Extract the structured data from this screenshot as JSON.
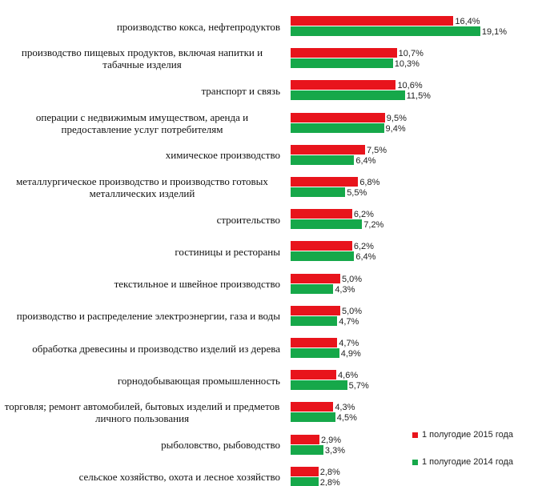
{
  "chart_data": {
    "type": "barh",
    "categories": [
      "производство кокса, нефтепродуктов",
      "производство пищевых продуктов, включая напитки и табачные изделия",
      "транспорт и связь",
      "операции с недвижимым имуществом, аренда и предоставление услуг потребителям",
      "химическое производство",
      "металлургическое производство и производство готовых металлических изделий",
      "строительство",
      "гостиницы и рестораны",
      "текстильное и швейное производство",
      "производство и распределение электроэнергии, газа и воды",
      "обработка древесины и производство изделий из дерева",
      "горнодобывающая промышленность",
      "торговля; ремонт автомобилей, бытовых изделий и предметов личного пользования",
      "рыболовство, рыбоводство",
      "сельское хозяйство, охота и лесное хозяйство"
    ],
    "series": [
      {
        "name": "1 полугодие 2015 года",
        "color": "#e8141c",
        "values": [
          16.4,
          10.7,
          10.6,
          9.5,
          7.5,
          6.8,
          6.2,
          6.2,
          5.0,
          5.0,
          4.7,
          4.6,
          4.3,
          2.9,
          2.8
        ],
        "value_labels": [
          "16,4%",
          "10,7%",
          "10,6%",
          "9,5%",
          "7,5%",
          "6,8%",
          "6,2%",
          "6,2%",
          "5,0%",
          "5,0%",
          "4,7%",
          "4,6%",
          "4,3%",
          "2,9%",
          "2,8%"
        ]
      },
      {
        "name": "1 полугодие 2014 года",
        "color": "#16a84a",
        "values": [
          19.1,
          10.3,
          11.5,
          9.4,
          6.4,
          5.5,
          7.2,
          6.4,
          4.3,
          4.7,
          4.9,
          5.7,
          4.5,
          3.3,
          2.8
        ],
        "value_labels": [
          "19,1%",
          "10,3%",
          "11,5%",
          "9,4%",
          "6,4%",
          "5,5%",
          "7,2%",
          "6,4%",
          "4,3%",
          "4,7%",
          "4,9%",
          "5,7%",
          "4,5%",
          "3,3%",
          "2,8%"
        ]
      }
    ],
    "legend": "bottom-right"
  }
}
